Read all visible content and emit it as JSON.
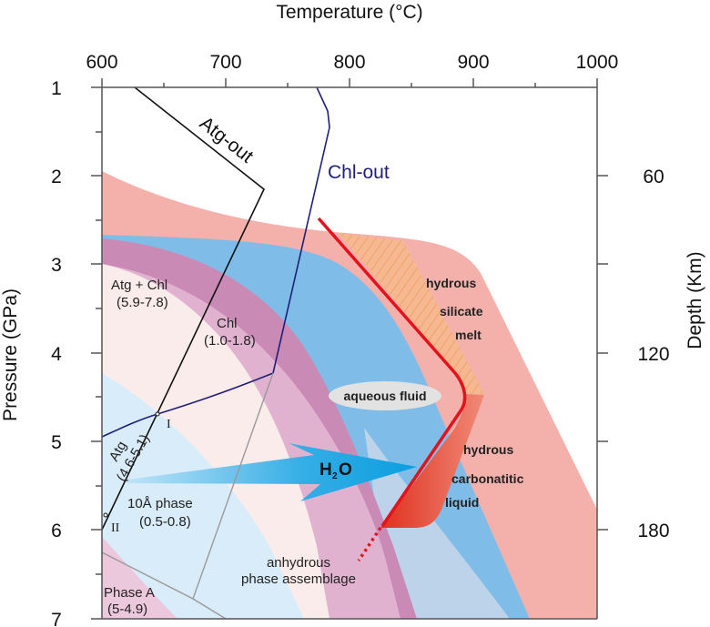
{
  "axes": {
    "top_title": "Temperature (°C)",
    "left_title": "Pressure (GPa)",
    "right_title": "Depth (Km)",
    "top_ticks": [
      "600",
      "700",
      "800",
      "900",
      "1000"
    ],
    "left_ticks": [
      "1",
      "2",
      "3",
      "4",
      "5",
      "6",
      "7"
    ],
    "right_ticks": [
      "60",
      "120",
      "180"
    ]
  },
  "curves": {
    "atg_out": "Atg-out",
    "chl_out": "Chl-out"
  },
  "fields": {
    "atg_chl": "Atg  + Chl",
    "atg_chl_range": "(5.9-7.8)",
    "chl": "Chl",
    "chl_range": "(1.0-1.8)",
    "atg": "Atg",
    "atg_range": "(4.6-5.1)",
    "ten_a": "10Å phase",
    "ten_a_range": "(0.5-0.8)",
    "phase_a": "Phase A",
    "phase_a_range": "(5-4.9)",
    "point_1": "I",
    "point_2": "II",
    "anhydrous_1": "anhydrous",
    "anhydrous_2": "phase assemblage",
    "aqueous": "aqueous fluid",
    "silicate_1": "hydrous",
    "silicate_2": "silicate",
    "silicate_3": "melt",
    "carb_1": "hydrous",
    "carb_2": "carbonatitic",
    "carb_3": "liquid",
    "h2o_h": "H",
    "h2o_2": "2",
    "h2o_o": "O"
  },
  "colors": {
    "melt_pink": "#f4b0ab",
    "fluid_blue": "#7fbde8",
    "purple": "#c98ab6",
    "solidus_red": "#e3121b",
    "chl_out_navy": "#1f1f7a"
  }
}
